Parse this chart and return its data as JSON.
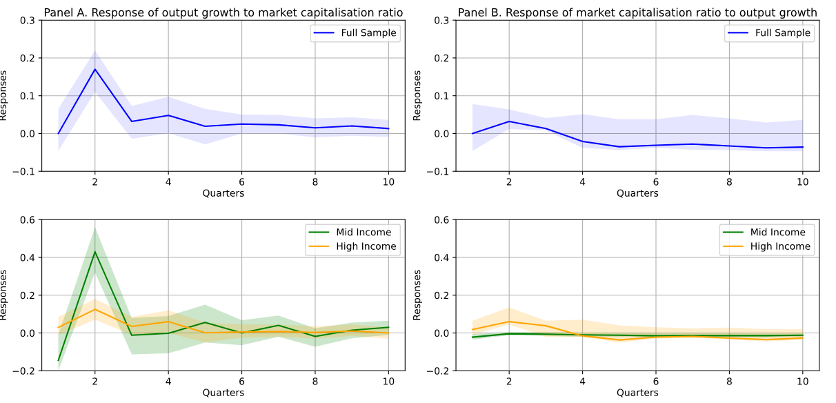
{
  "chart_data": [
    {
      "type": "line",
      "title": "Panel A. Response of output growth to market capitalisation ratio",
      "xlabel": "Quarters",
      "ylabel": "Responses",
      "x": [
        1,
        2,
        3,
        4,
        5,
        6,
        7,
        8,
        9,
        10
      ],
      "xlim": [
        0.55,
        10.45
      ],
      "xticks": [
        2,
        4,
        6,
        8,
        10
      ],
      "ylim": [
        -0.1,
        0.3
      ],
      "yticks": [
        {
          "value": -0.1,
          "label": "−0.1"
        },
        {
          "value": 0.0,
          "label": "0.0"
        },
        {
          "value": 0.1,
          "label": "0.1"
        },
        {
          "value": 0.2,
          "label": "0.2"
        },
        {
          "value": 0.3,
          "label": "0.3"
        }
      ],
      "grid": true,
      "legend": "top right",
      "line_style": "solid",
      "series": [
        {
          "name": "Full Sample",
          "color": "#0000ff",
          "values": [
            0,
            0.17,
            0.032,
            0.048,
            0.019,
            0.025,
            0.023,
            0.015,
            0.02,
            0.013
          ],
          "upper": [
            0.065,
            0.22,
            0.073,
            0.097,
            0.065,
            0.05,
            0.049,
            0.04,
            0.043,
            0.036
          ],
          "lower": [
            -0.046,
            0.11,
            -0.014,
            0.001,
            -0.029,
            0.0,
            0.0,
            -0.01,
            -0.006,
            -0.009
          ]
        }
      ]
    },
    {
      "type": "line",
      "title": "Panel B. Response of market capitalisation ratio to output growth",
      "xlabel": "Quarters",
      "ylabel": "Responses",
      "x": [
        1,
        2,
        3,
        4,
        5,
        6,
        7,
        8,
        9,
        10
      ],
      "xlim": [
        0.55,
        10.45
      ],
      "xticks": [
        2,
        4,
        6,
        8,
        10
      ],
      "ylim": [
        -0.1,
        0.3
      ],
      "yticks": [
        {
          "value": -0.1,
          "label": "−0.1"
        },
        {
          "value": 0.0,
          "label": "0.0"
        },
        {
          "value": 0.1,
          "label": "0.1"
        },
        {
          "value": 0.2,
          "label": "0.2"
        },
        {
          "value": 0.3,
          "label": "0.3"
        }
      ],
      "grid": true,
      "legend": "top right",
      "line_style": "solid",
      "series": [
        {
          "name": "Full Sample",
          "color": "#0000ff",
          "values": [
            0,
            0.032,
            0.013,
            -0.021,
            -0.035,
            -0.031,
            -0.028,
            -0.033,
            -0.038,
            -0.036
          ],
          "upper": [
            0.078,
            0.064,
            0.041,
            0.051,
            0.038,
            0.038,
            0.049,
            0.04,
            0.029,
            0.036
          ],
          "lower": [
            -0.046,
            0.012,
            0.008,
            -0.038,
            -0.044,
            -0.038,
            -0.043,
            -0.044,
            -0.047,
            -0.047
          ]
        }
      ]
    },
    {
      "type": "line",
      "xlabel": "Quarters",
      "ylabel": "Responses",
      "x": [
        1,
        2,
        3,
        4,
        5,
        6,
        7,
        8,
        9,
        10
      ],
      "xlim": [
        0.55,
        10.45
      ],
      "xticks": [
        2,
        4,
        6,
        8,
        10
      ],
      "ylim": [
        -0.2,
        0.6
      ],
      "yticks": [
        {
          "value": -0.2,
          "label": "−0.2"
        },
        {
          "value": 0.0,
          "label": "0.0"
        },
        {
          "value": 0.2,
          "label": "0.2"
        },
        {
          "value": 0.4,
          "label": "0.4"
        },
        {
          "value": 0.6,
          "label": "0.6"
        }
      ],
      "grid": true,
      "legend": "top right",
      "line_style": "solid",
      "series": [
        {
          "name": "Mid Income",
          "color": "#008000",
          "values": [
            -0.145,
            0.43,
            -0.012,
            -0.002,
            0.056,
            0.0,
            0.04,
            -0.018,
            0.015,
            0.03
          ],
          "upper": [
            -0.01,
            0.56,
            0.08,
            0.09,
            0.15,
            0.068,
            0.092,
            0.025,
            0.055,
            0.065
          ],
          "lower": [
            -0.2,
            0.32,
            -0.113,
            -0.108,
            -0.05,
            -0.065,
            -0.02,
            -0.073,
            -0.028,
            -0.01
          ]
        },
        {
          "name": "High Income",
          "color": "#ffa500",
          "values": [
            0.03,
            0.125,
            0.035,
            0.06,
            0.001,
            0.005,
            0.008,
            0.003,
            0.01,
            0.0
          ],
          "upper": [
            0.085,
            0.18,
            0.085,
            0.12,
            0.055,
            0.045,
            0.045,
            0.035,
            0.045,
            0.03
          ],
          "lower": [
            -0.01,
            0.07,
            -0.01,
            0.0,
            -0.05,
            -0.025,
            -0.02,
            -0.03,
            -0.015,
            -0.03
          ]
        }
      ]
    },
    {
      "type": "line",
      "xlabel": "Quarters",
      "ylabel": "Responses",
      "x": [
        1,
        2,
        3,
        4,
        5,
        6,
        7,
        8,
        9,
        10
      ],
      "xlim": [
        0.55,
        10.45
      ],
      "xticks": [
        2,
        4,
        6,
        8,
        10
      ],
      "ylim": [
        -0.2,
        0.6
      ],
      "yticks": [
        {
          "value": -0.2,
          "label": "−0.2"
        },
        {
          "value": 0.0,
          "label": "0.0"
        },
        {
          "value": 0.2,
          "label": "0.2"
        },
        {
          "value": 0.4,
          "label": "0.4"
        },
        {
          "value": 0.6,
          "label": "0.6"
        }
      ],
      "grid": true,
      "legend": "top right",
      "line_style": "solid",
      "series": [
        {
          "name": "Mid Income",
          "color": "#008000",
          "values": [
            -0.022,
            -0.004,
            -0.006,
            -0.01,
            -0.012,
            -0.015,
            -0.014,
            -0.014,
            -0.014,
            -0.012
          ],
          "upper": [
            -0.005,
            0.005,
            0.005,
            0.002,
            0.0,
            -0.002,
            -0.002,
            -0.002,
            -0.003,
            -0.002
          ],
          "lower": [
            -0.035,
            -0.012,
            -0.015,
            -0.02,
            -0.022,
            -0.025,
            -0.025,
            -0.025,
            -0.025,
            -0.022
          ]
        },
        {
          "name": "High Income",
          "color": "#ffa500",
          "values": [
            0.018,
            0.06,
            0.038,
            -0.015,
            -0.037,
            -0.022,
            -0.018,
            -0.027,
            -0.035,
            -0.027
          ],
          "upper": [
            0.065,
            0.135,
            0.065,
            0.07,
            0.04,
            0.03,
            0.025,
            0.028,
            0.02,
            0.02
          ],
          "lower": [
            -0.01,
            0.045,
            -0.02,
            -0.022,
            -0.05,
            -0.03,
            -0.025,
            -0.035,
            -0.045,
            -0.035
          ]
        }
      ]
    }
  ]
}
